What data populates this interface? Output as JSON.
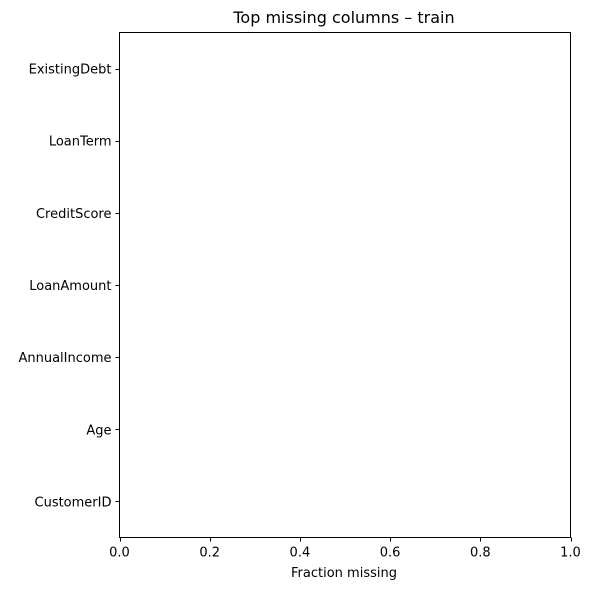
{
  "chart_data": {
    "type": "bar",
    "orientation": "horizontal",
    "title": "Top missing columns – train",
    "xlabel": "Fraction missing",
    "ylabel": "",
    "categories": [
      "ExistingDebt",
      "LoanTerm",
      "CreditScore",
      "LoanAmount",
      "AnnualIncome",
      "Age",
      "CustomerID"
    ],
    "values": [
      0,
      0,
      0,
      0,
      0,
      0,
      0
    ],
    "xlim": [
      0,
      1
    ],
    "xticks": [
      "0.0",
      "0.2",
      "0.4",
      "0.6",
      "0.8",
      "1.0"
    ],
    "grid": false,
    "legend": "none",
    "bar_color": "#1f77b4"
  }
}
